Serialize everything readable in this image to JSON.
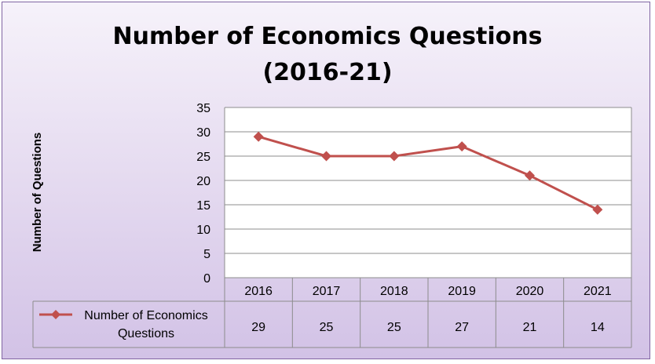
{
  "chart_data": {
    "type": "line",
    "title_lines": [
      "Number of Economics Questions",
      "(2016-21)"
    ],
    "ylabel": "Number of Questions",
    "xlabel": "",
    "categories": [
      "2016",
      "2017",
      "2018",
      "2019",
      "2020",
      "2021"
    ],
    "series": [
      {
        "name_lines": [
          "Number of Economics",
          "Questions"
        ],
        "values": [
          29,
          25,
          25,
          27,
          21,
          14
        ],
        "color": "#c0504d"
      }
    ],
    "ylim": [
      0,
      35
    ],
    "yticks": [
      0,
      5,
      10,
      15,
      20,
      25,
      30,
      35
    ],
    "grid": true,
    "legend": "data-table"
  }
}
